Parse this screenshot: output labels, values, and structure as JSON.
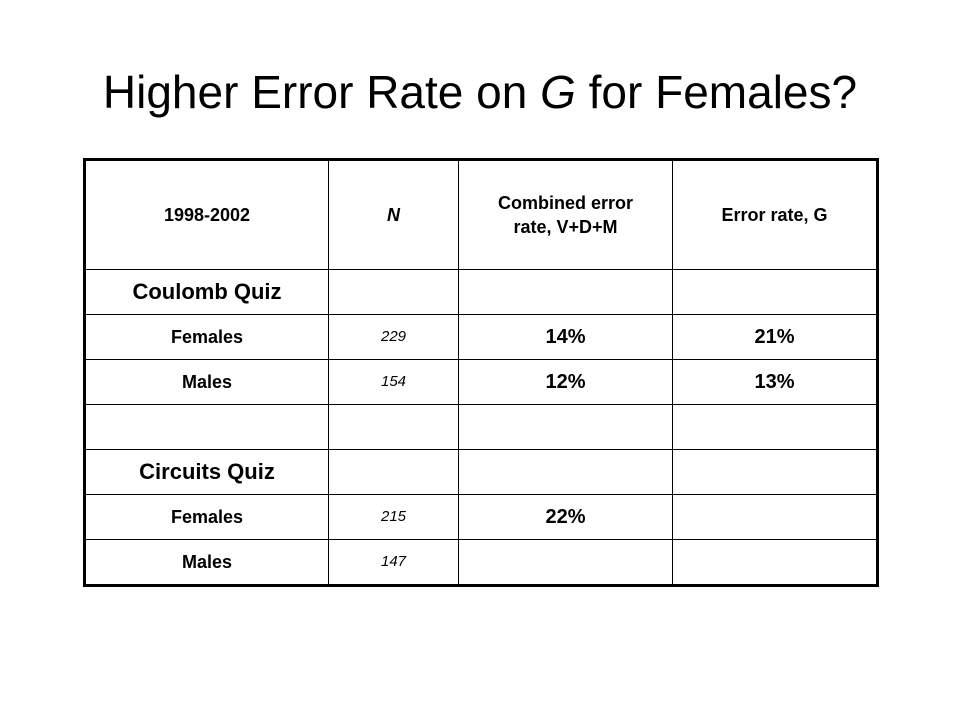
{
  "slide": {
    "title_part1": "Higher Error Rate on ",
    "title_g": "G",
    "title_part2": " for Females?"
  },
  "table": {
    "headers": {
      "period": "1998-2002",
      "n": "N",
      "combined": "Combined error rate, V+D+M",
      "g_rate": "Error rate, G"
    },
    "coulomb": {
      "label": "Coulomb Quiz",
      "females": {
        "label": "Females",
        "n": "229",
        "combined": "14%",
        "g_rate": "21%"
      },
      "males": {
        "label": "Males",
        "n": "154",
        "combined": "12%",
        "g_rate": "13%"
      }
    },
    "circuits": {
      "label": "Circuits Quiz",
      "females": {
        "label": "Females",
        "n": "215",
        "combined": "22%",
        "g_rate": ""
      },
      "males": {
        "label": "Males",
        "n": "147",
        "combined": "",
        "g_rate": ""
      }
    }
  }
}
